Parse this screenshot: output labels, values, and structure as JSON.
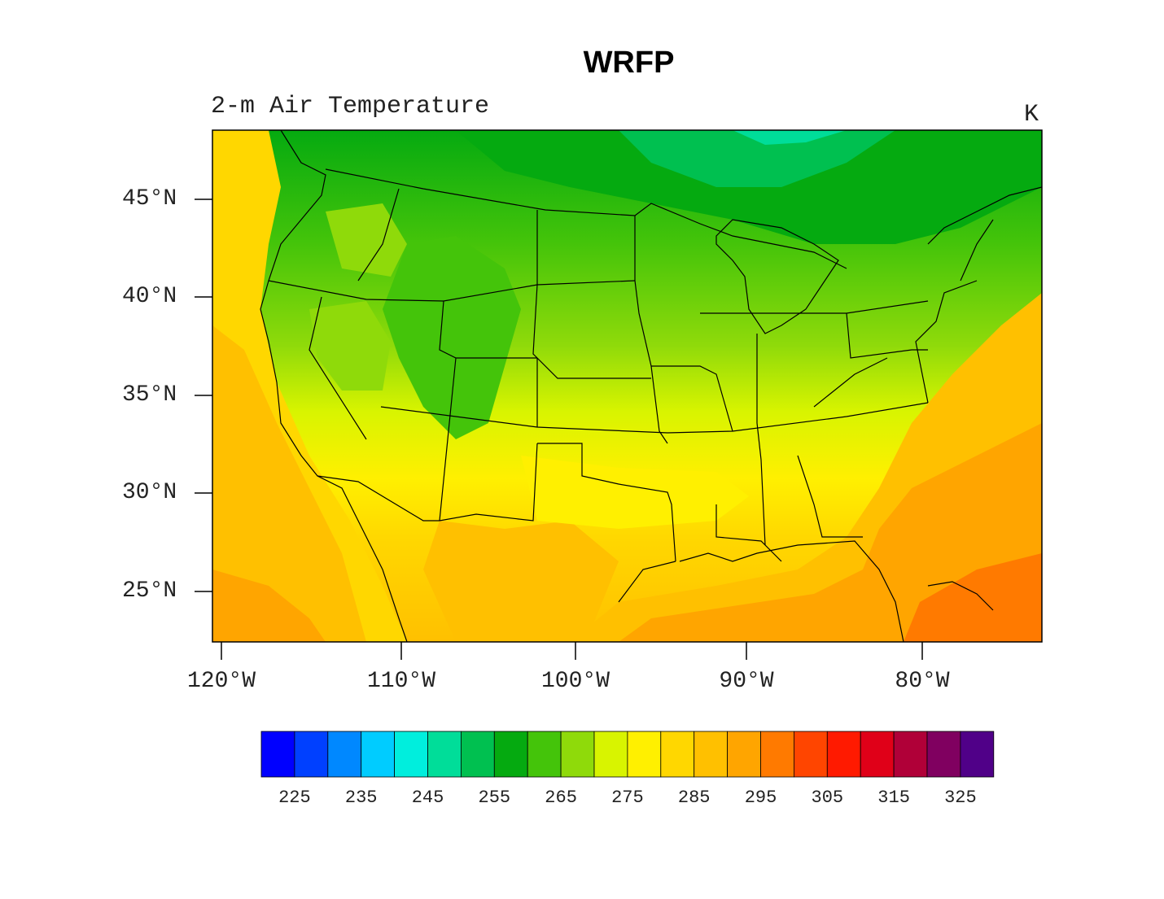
{
  "title": "WRFP",
  "subtitle": "2-m Air Temperature",
  "units": "K",
  "lat_labels": [
    "45°N",
    "40°N",
    "35°N",
    "30°N",
    "25°N"
  ],
  "lon_labels": [
    "120°W",
    "110°W",
    "100°W",
    "90°W",
    "80°W"
  ],
  "colorbar": {
    "colors": [
      "#0000ff",
      "#0040ff",
      "#0088ff",
      "#00ccff",
      "#00eedd",
      "#00dd99",
      "#00c050",
      "#05aa10",
      "#44c40a",
      "#8fda0a",
      "#d8f400",
      "#fff000",
      "#ffd700",
      "#ffc000",
      "#ffa500",
      "#ff7a00",
      "#ff4500",
      "#ff1a00",
      "#e00018",
      "#b00038",
      "#800060",
      "#500088"
    ],
    "labels": [
      "225",
      "235",
      "245",
      "255",
      "265",
      "275",
      "285",
      "295",
      "305",
      "315",
      "325"
    ]
  }
}
